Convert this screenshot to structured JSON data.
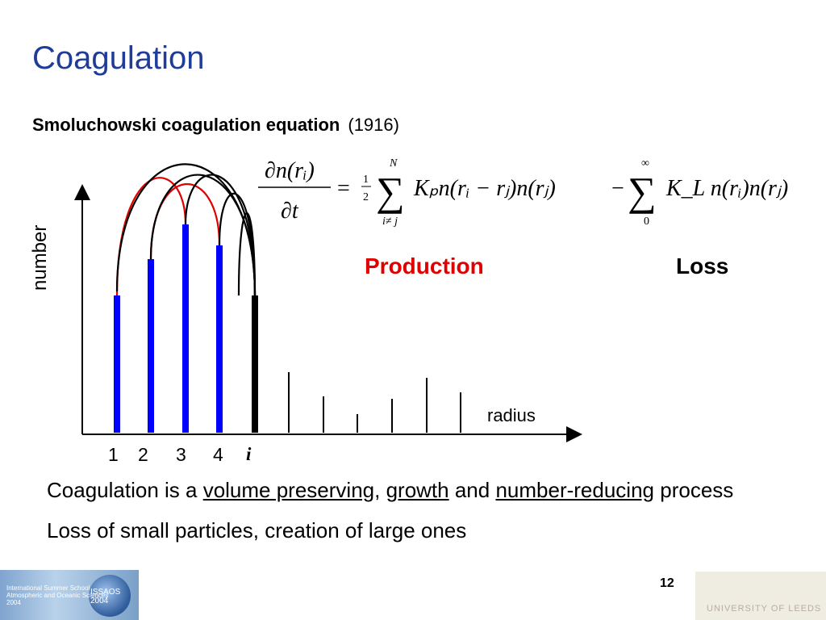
{
  "slide": {
    "title": "Coagulation",
    "subtitle_bold": "Smoluchowski coagulation equation",
    "subtitle_year": "(1916)",
    "page_number": "12"
  },
  "equation": {
    "lhs_numerator": "∂n(rᵢ)",
    "lhs_denominator": "∂t",
    "rhs_gain_sum_upper": "N",
    "rhs_gain_sum_lower": "i≠ j",
    "rhs_gain_coeff_num": "1",
    "rhs_gain_coeff_den": "2",
    "rhs_gain_term": "Kₚn(rᵢ − rⱼ)n(rⱼ)",
    "rhs_loss_sum_upper": "∞",
    "rhs_loss_sum_lower": "0",
    "rhs_loss_term": "K_L n(rᵢ)n(rⱼ)"
  },
  "labels": {
    "production": "Production",
    "loss": "Loss",
    "y_axis": "number",
    "x_axis": "radius"
  },
  "ticks": [
    "1",
    "2",
    "3",
    "4",
    "i"
  ],
  "bars": {
    "blue_heights": [
      170,
      215,
      258,
      232
    ],
    "black_i_height": 170,
    "gray_heights": [
      75,
      45,
      23,
      42,
      68,
      50
    ]
  },
  "colors": {
    "title": "#1f3c99",
    "production": "#e00000",
    "bar_blue": "#0000ff",
    "arc_red": "#e00000"
  },
  "bullets": {
    "line1_a": "Coagulation is a ",
    "line1_u1": "volume preserving",
    "line1_b": ", ",
    "line1_u2": "growth",
    "line1_c": " and ",
    "line1_u3": "number-reducing",
    "line1_d": " process",
    "line2": "Loss of small particles, creation of large ones"
  },
  "footer": {
    "left_text": "International Summer School\nAtmospheric and Oceanic Sciences\n2004",
    "left_logo": "ISSAOS 2004",
    "right_text": "UNIVERSITY OF LEEDS"
  }
}
